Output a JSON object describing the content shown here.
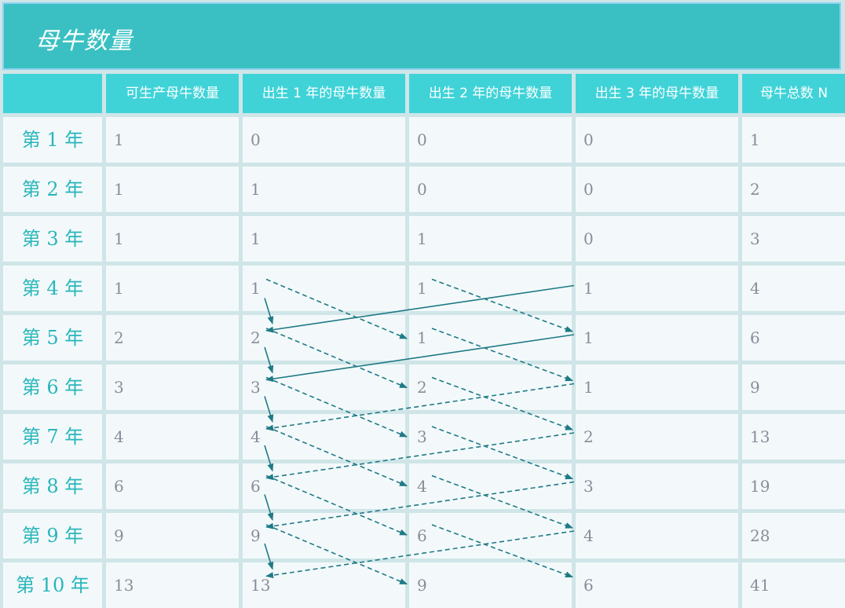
{
  "title": "母牛数量",
  "headers": [
    "",
    "可生产母牛数量",
    "出生 1 年的母牛数量",
    "出生 2 年的母牛数量",
    "出生 3 年的母牛数量",
    "母牛总数 N"
  ],
  "rows": [
    {
      "label": "第 1 年",
      "values": [
        "1",
        "0",
        "0",
        "0",
        "1"
      ]
    },
    {
      "label": "第 2 年",
      "values": [
        "1",
        "1",
        "0",
        "0",
        "2"
      ]
    },
    {
      "label": "第 3 年",
      "values": [
        "1",
        "1",
        "1",
        "0",
        "3"
      ]
    },
    {
      "label": "第 4 年",
      "values": [
        "1",
        "1",
        "1",
        "1",
        "4"
      ]
    },
    {
      "label": "第 5 年",
      "values": [
        "2",
        "2",
        "1",
        "1",
        "6"
      ]
    },
    {
      "label": "第 6 年",
      "values": [
        "3",
        "3",
        "2",
        "1",
        "9"
      ]
    },
    {
      "label": "第 7 年",
      "values": [
        "4",
        "4",
        "3",
        "2",
        "13"
      ]
    },
    {
      "label": "第 8 年",
      "values": [
        "6",
        "6",
        "4",
        "3",
        "19"
      ]
    },
    {
      "label": "第 9 年",
      "values": [
        "9",
        "9",
        "6",
        "4",
        "28"
      ]
    },
    {
      "label": "第 10 年",
      "values": [
        "13",
        "13",
        "9",
        "6",
        "41"
      ]
    }
  ],
  "colors": {
    "title_bg": "#3ac0c3",
    "header_bg": "#3fd3d8",
    "cell_bg": "#f3f9fa",
    "row_label": "#29b6bb",
    "arrow": "#1f7a86"
  }
}
